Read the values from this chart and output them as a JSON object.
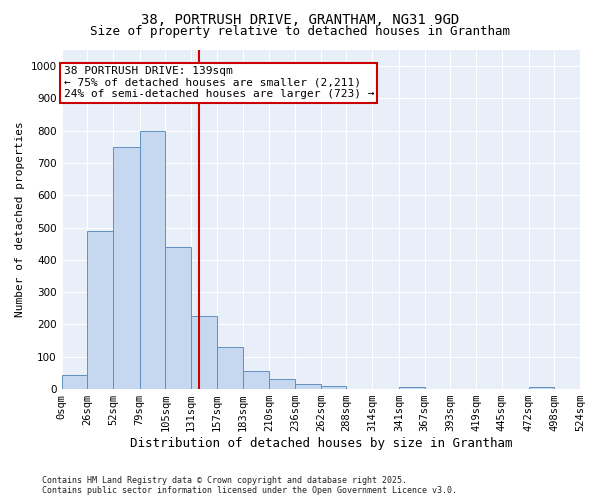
{
  "title": "38, PORTRUSH DRIVE, GRANTHAM, NG31 9GD",
  "subtitle": "Size of property relative to detached houses in Grantham",
  "xlabel": "Distribution of detached houses by size in Grantham",
  "ylabel": "Number of detached properties",
  "bar_color": "#c5d8f0",
  "bar_edge_color": "#6090c0",
  "background_color": "#e8eff8",
  "grid_color": "#ffffff",
  "vline_x": 139,
  "vline_color": "#cc0000",
  "annotation_text": "38 PORTRUSH DRIVE: 139sqm\n← 75% of detached houses are smaller (2,211)\n24% of semi-detached houses are larger (723) →",
  "annotation_box_facecolor": "#ffffff",
  "annotation_box_edgecolor": "#cc0000",
  "bins": [
    0,
    26,
    52,
    79,
    105,
    131,
    157,
    183,
    210,
    236,
    262,
    288,
    314,
    341,
    367,
    393,
    419,
    445,
    472,
    498,
    524
  ],
  "bin_labels": [
    "0sqm",
    "26sqm",
    "52sqm",
    "79sqm",
    "105sqm",
    "131sqm",
    "157sqm",
    "183sqm",
    "210sqm",
    "236sqm",
    "262sqm",
    "288sqm",
    "314sqm",
    "341sqm",
    "367sqm",
    "393sqm",
    "419sqm",
    "445sqm",
    "472sqm",
    "498sqm",
    "524sqm"
  ],
  "bar_heights": [
    43,
    490,
    750,
    800,
    440,
    225,
    130,
    55,
    30,
    15,
    8,
    0,
    0,
    5,
    0,
    0,
    0,
    0,
    5,
    0
  ],
  "ylim": [
    0,
    1050
  ],
  "yticks": [
    0,
    100,
    200,
    300,
    400,
    500,
    600,
    700,
    800,
    900,
    1000
  ],
  "footer_text": "Contains HM Land Registry data © Crown copyright and database right 2025.\nContains public sector information licensed under the Open Government Licence v3.0.",
  "title_fontsize": 10,
  "subtitle_fontsize": 9,
  "xlabel_fontsize": 9,
  "ylabel_fontsize": 8,
  "tick_fontsize": 7.5,
  "annotation_fontsize": 8,
  "footer_fontsize": 6
}
